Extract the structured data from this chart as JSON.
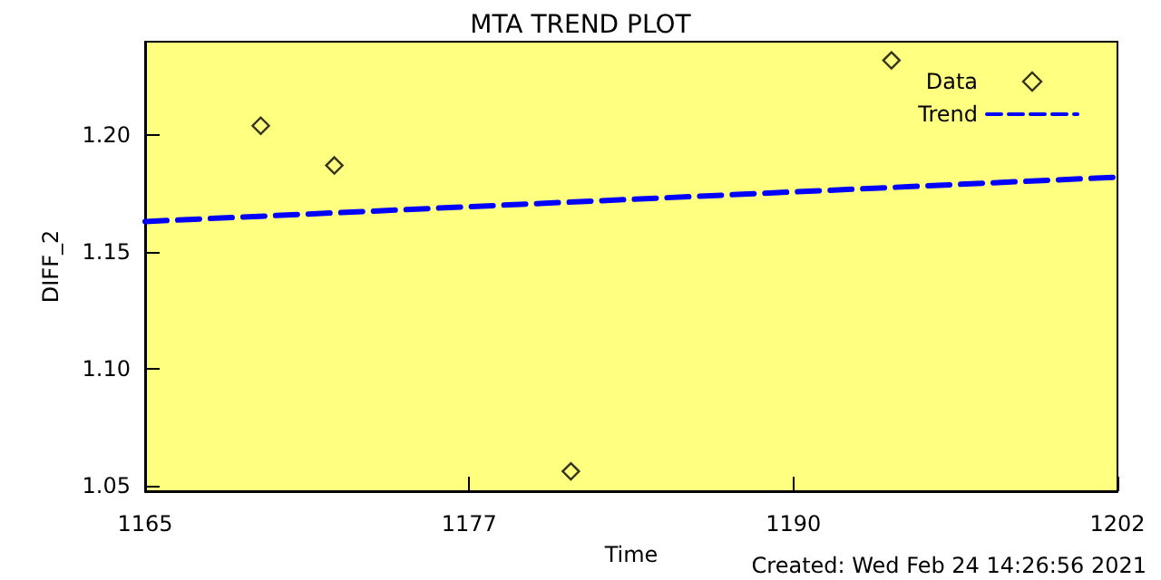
{
  "chart_data": {
    "type": "scatter",
    "title": "MTA TREND PLOT",
    "xlabel": "Time",
    "ylabel": "DIFF_2",
    "annotations": [
      "Created: Wed Feb 24 14:26:56 2021"
    ],
    "xlim": [
      1165,
      1202
    ],
    "xticks": [
      1165,
      {
        "value": 1177.33,
        "label": "1177"
      },
      {
        "value": 1189.67,
        "label": "1190"
      },
      1202
    ],
    "ylim": [
      1.0475,
      1.24
    ],
    "yticks": [
      {
        "value": 1.05,
        "label": "1.05"
      },
      {
        "value": 1.1,
        "label": "1.10"
      },
      {
        "value": 1.15,
        "label": "1.15"
      },
      {
        "value": 1.2,
        "label": "1.20"
      }
    ],
    "legend": "top right",
    "grid": false,
    "series": [
      {
        "name": "Data",
        "marker": "diamond",
        "color": "#000000",
        "x": [
          1169.4,
          1172.2,
          1181.2,
          1193.4
        ],
        "values": [
          1.204,
          1.187,
          1.056,
          1.232
        ]
      },
      {
        "name": "Trend",
        "type": "line",
        "marker": "none",
        "line_style": "dashed",
        "color": "#0000ff",
        "x": [
          1165,
          1202
        ],
        "values": [
          1.163,
          1.182
        ]
      }
    ]
  }
}
